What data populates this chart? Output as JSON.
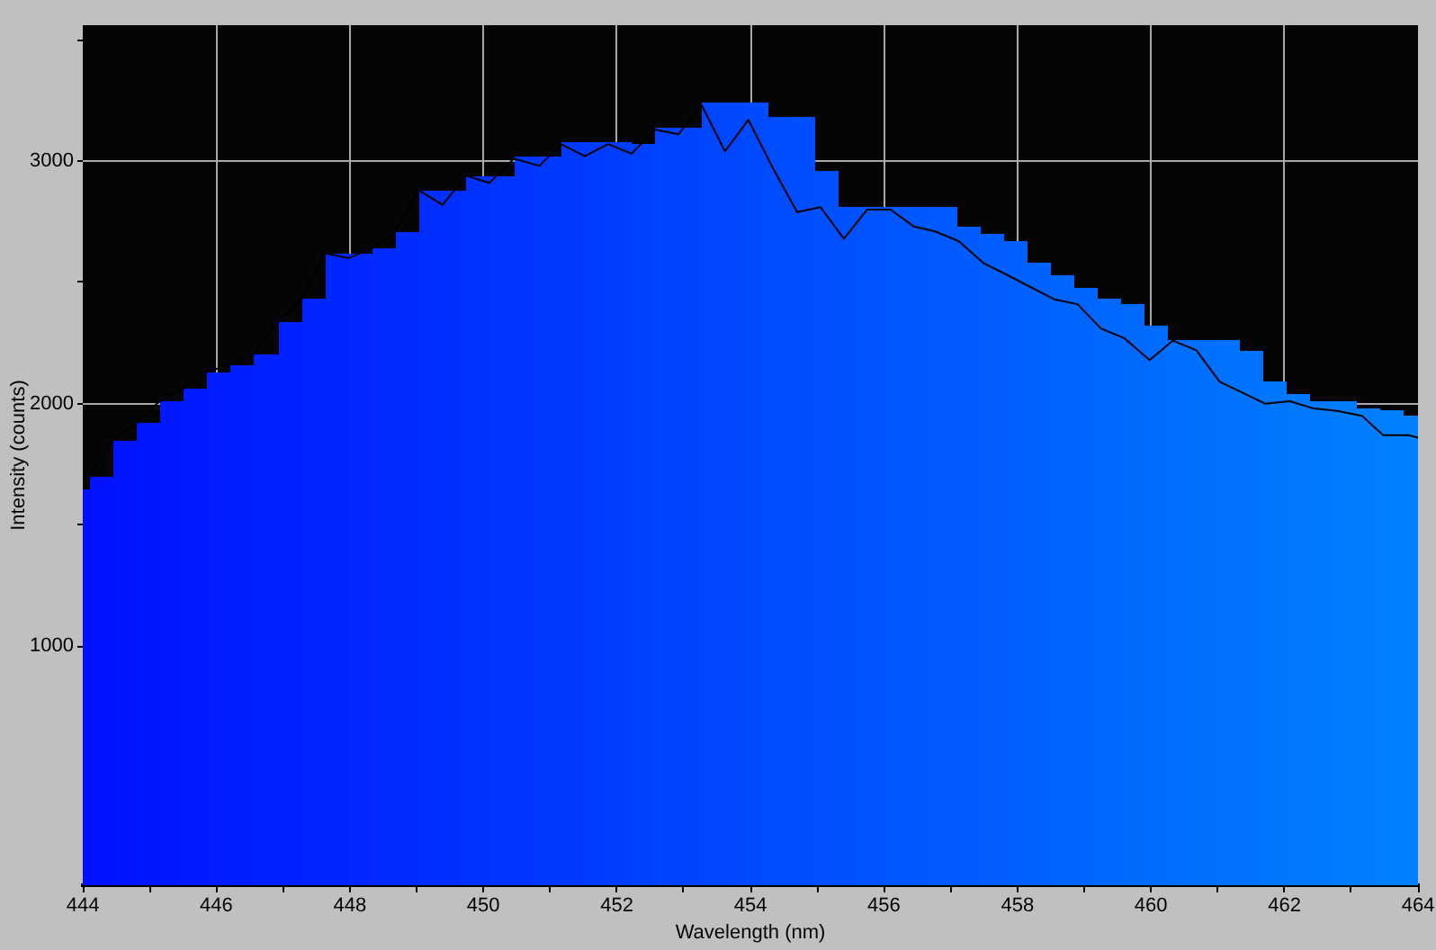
{
  "chart_data": {
    "type": "histogram",
    "xlabel": "Wavelength (nm)",
    "ylabel": "Intensity (counts)",
    "bins": [
      444,
      444.1,
      444.45,
      444.8,
      445.15,
      445.5,
      445.85,
      446.2,
      446.55,
      446.93,
      447.28,
      447.63,
      447.98,
      448.33,
      448.68,
      449.03,
      449.39,
      449.74,
      450.09,
      450.46,
      450.81,
      451.16,
      451.52,
      451.87,
      452.22,
      452.57,
      452.92,
      453.27,
      453.6,
      453.93,
      454.26,
      454.61,
      454.96,
      455.31,
      455.67,
      456.02,
      456.38,
      456.73,
      457.09,
      457.45,
      457.8,
      458.15,
      458.5,
      458.85,
      459.2,
      459.55,
      459.9,
      460.25,
      460.6,
      460.98,
      461.33,
      461.68,
      462.03,
      462.38,
      462.73,
      463.08,
      463.43,
      463.78,
      464
    ],
    "series": [
      {
        "type": "histogram",
        "values": [
          1650,
          1700,
          1850,
          1920,
          2010,
          2060,
          2130,
          2160,
          2200,
          2340,
          2430,
          2620,
          2620,
          2640,
          2710,
          2880,
          2880,
          2940,
          2940,
          3020,
          3020,
          3080,
          3080,
          3080,
          3070,
          3140,
          3140,
          3240,
          3240,
          3240,
          3180,
          3180,
          2960,
          2810,
          2810,
          2810,
          2810,
          2810,
          2730,
          2700,
          2670,
          2580,
          2530,
          2480,
          2430,
          2410,
          2320,
          2260,
          2260,
          2260,
          2220,
          2090,
          2040,
          2010,
          2010,
          1980,
          1970,
          1950
        ],
        "colors": [
          "#0010ff",
          "#0012ff",
          "#0014ff",
          "#0016ff",
          "#0018ff",
          "#001aff",
          "#001cff",
          "#001eff",
          "#0020ff",
          "#0022ff",
          "#0024ff",
          "#0026ff",
          "#0028ff",
          "#002aff",
          "#002cff",
          "#002eff",
          "#0030ff",
          "#0032ff",
          "#0034ff",
          "#0036ff",
          "#0038ff",
          "#003aff",
          "#003cff",
          "#003eff",
          "#0040ff",
          "#0042ff",
          "#0044ff",
          "#0046ff",
          "#0048ff",
          "#004aff",
          "#004cff",
          "#004eff",
          "#0050ff",
          "#0052ff",
          "#0054ff",
          "#0056ff",
          "#0058ff",
          "#005aff",
          "#005cff",
          "#005eff",
          "#0060ff",
          "#0062ff",
          "#0064ff",
          "#0066ff",
          "#0068ff",
          "#006aff",
          "#006cff",
          "#006eff",
          "#0070ff",
          "#0072ff",
          "#0074ff",
          "#0076ff",
          "#0078ff",
          "#007aff",
          "#007cff",
          "#007eff",
          "#0080ff",
          "#0082ff"
        ]
      },
      {
        "type": "line",
        "color": "#000000",
        "x": [
          444.1,
          444.45,
          444.8,
          445.15,
          445.5,
          445.85,
          446.2,
          446.55,
          446.93,
          447.28,
          447.63,
          447.98,
          448.33,
          448.68,
          449.03,
          449.39,
          449.74,
          450.09,
          450.46,
          450.84,
          451.16,
          451.52,
          451.87,
          452.22,
          452.57,
          452.92,
          453.27,
          453.62,
          453.97,
          454.32,
          454.7,
          455.05,
          455.4,
          455.75,
          456.1,
          456.45,
          456.77,
          457.12,
          457.49,
          457.85,
          458.2,
          458.55,
          458.9,
          459.25,
          459.6,
          459.98,
          460.33,
          460.68,
          461.03,
          461.41,
          461.71,
          462.08,
          462.44,
          462.79,
          463.16,
          463.48,
          463.86,
          464
        ],
        "values": [
          1700,
          1850,
          1920,
          2010,
          2060,
          2130,
          2160,
          2200,
          2340,
          2430,
          2620,
          2600,
          2640,
          2710,
          2880,
          2820,
          2940,
          2910,
          3010,
          2980,
          3070,
          3020,
          3070,
          3030,
          3130,
          3110,
          3230,
          3040,
          3170,
          2980,
          2790,
          2810,
          2680,
          2800,
          2800,
          2730,
          2710,
          2670,
          2580,
          2530,
          2480,
          2430,
          2410,
          2310,
          2270,
          2180,
          2260,
          2220,
          2090,
          2040,
          2000,
          2010,
          1980,
          1970,
          1950,
          1870,
          1870,
          1860
        ]
      }
    ],
    "xlim": [
      444,
      464
    ],
    "xticks": [
      444,
      {
        "value": 445,
        "label": null
      },
      446,
      {
        "value": 447,
        "label": null
      },
      448,
      {
        "value": 449,
        "label": null
      },
      450,
      {
        "value": 451,
        "label": null
      },
      452,
      {
        "value": 453,
        "label": null
      },
      454,
      {
        "value": 455,
        "label": null
      },
      456,
      {
        "value": 457,
        "label": null
      },
      458,
      {
        "value": 459,
        "label": null
      },
      460,
      {
        "value": 461,
        "label": null
      },
      462,
      {
        "value": 463,
        "label": null
      },
      464
    ],
    "ylim": [
      15,
      3560
    ],
    "yticks": [
      1000,
      {
        "value": 1500,
        "label": null
      },
      2000,
      {
        "value": 2500,
        "label": null
      },
      3000,
      {
        "value": 3500,
        "label": null
      }
    ],
    "grid": true
  }
}
